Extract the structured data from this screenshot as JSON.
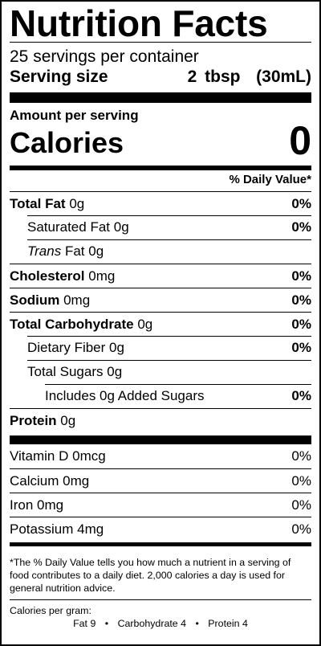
{
  "label": {
    "title": "Nutrition Facts",
    "servings_per_container": "25 servings per container",
    "serving_size_label": "Serving size",
    "serving_size_value": "2 tbsp  (30mL)",
    "amount_per_serving": "Amount per serving",
    "calories_label": "Calories",
    "calories_value": "0",
    "daily_value_header": "% Daily Value*",
    "nutrients": [
      {
        "name": "Total Fat",
        "amount": "0g",
        "dv": "0%"
      },
      {
        "name": "Saturated Fat",
        "amount": "0g",
        "dv": "0%"
      },
      {
        "name": "Trans",
        "name_rest": "Fat",
        "amount": "0g",
        "dv": ""
      },
      {
        "name": "Cholesterol",
        "amount": "0mg",
        "dv": "0%"
      },
      {
        "name": "Sodium",
        "amount": "0mg",
        "dv": "0%"
      },
      {
        "name": "Total Carbohydrate",
        "amount": "0g",
        "dv": "0%"
      },
      {
        "name": "Dietary Fiber",
        "amount": "0g",
        "dv": "0%"
      },
      {
        "name": "Total Sugars",
        "amount": "0g",
        "dv": ""
      },
      {
        "name": "Includes 0g Added Sugars",
        "amount": "",
        "dv": "0%"
      },
      {
        "name": "Protein",
        "amount": "0g",
        "dv": ""
      }
    ],
    "vitamins": [
      {
        "name": "Vitamin D",
        "amount": "0mcg",
        "dv": "0%"
      },
      {
        "name": "Calcium",
        "amount": "0mg",
        "dv": "0%"
      },
      {
        "name": "Iron",
        "amount": "0mg",
        "dv": "0%"
      },
      {
        "name": "Potassium",
        "amount": "4mg",
        "dv": "0%"
      }
    ],
    "footnote": "*The % Daily Value tells you how much a nutrient in a serving of food contributes to a daily diet. 2,000 calories a day is used for general nutrition advice.",
    "calories_per_gram_label": "Calories per gram:",
    "calories_per_gram": [
      {
        "name": "Fat",
        "value": "9"
      },
      {
        "name": "Carbohydrate",
        "value": "4"
      },
      {
        "name": "Protein",
        "value": "4"
      }
    ],
    "separator": "•"
  }
}
